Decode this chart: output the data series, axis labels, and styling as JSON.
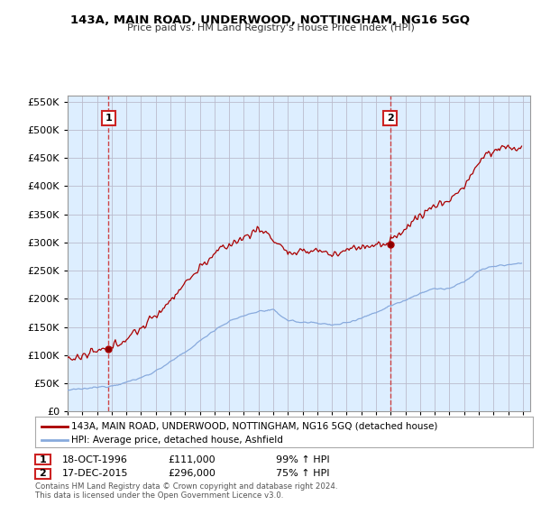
{
  "title": "143A, MAIN ROAD, UNDERWOOD, NOTTINGHAM, NG16 5GQ",
  "subtitle": "Price paid vs. HM Land Registry's House Price Index (HPI)",
  "hpi_label": "HPI: Average price, detached house, Ashfield",
  "property_label": "143A, MAIN ROAD, UNDERWOOD, NOTTINGHAM, NG16 5GQ (detached house)",
  "transaction1_date": "18-OCT-1996",
  "transaction1_price": 111000,
  "transaction1_hpi": "99% ↑ HPI",
  "transaction2_date": "17-DEC-2015",
  "transaction2_price": 296000,
  "transaction2_hpi": "75% ↑ HPI",
  "copyright_text": "Contains HM Land Registry data © Crown copyright and database right 2024.\nThis data is licensed under the Open Government Licence v3.0.",
  "property_color": "#aa0000",
  "hpi_color": "#88aadd",
  "vline_color": "#cc3333",
  "plot_bg_color": "#ddeeff",
  "background_color": "#ffffff",
  "grid_color": "#bbbbcc",
  "ylim": [
    0,
    560000
  ],
  "yticks": [
    0,
    50000,
    100000,
    150000,
    200000,
    250000,
    300000,
    350000,
    400000,
    450000,
    500000,
    550000
  ],
  "year_start": 1994,
  "year_end": 2025
}
